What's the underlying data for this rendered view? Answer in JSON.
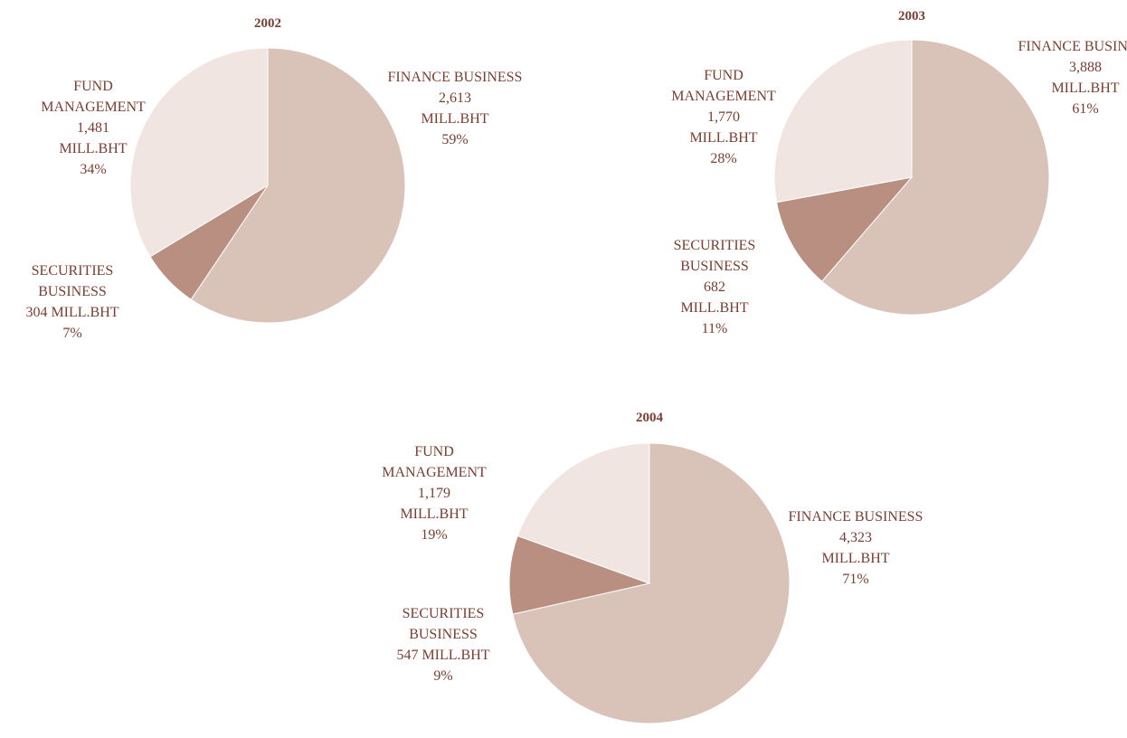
{
  "chart_data": [
    {
      "type": "pie",
      "title": "2002",
      "unit": "MILL.BHT",
      "categories": [
        "FINANCE BUSINESS",
        "SECURITIES BUSINESS",
        "FUND MANAGEMENT"
      ],
      "values": [
        2613,
        304,
        1481
      ],
      "value_labels": [
        "2,613",
        "304",
        "1,481"
      ],
      "percents": [
        59,
        7,
        34
      ],
      "percent_labels": [
        "59%",
        "7%",
        "34%"
      ],
      "colors": [
        "#d9c2b8",
        "#b98f82",
        "#f0e5e0"
      ]
    },
    {
      "type": "pie",
      "title": "2003",
      "unit": "MILL.BHT",
      "categories": [
        "FINANCE BUSINESS",
        "SECURITIES BUSINESS",
        "FUND MANAGEMENT"
      ],
      "values": [
        3888,
        682,
        1770
      ],
      "value_labels": [
        "3,888",
        "682",
        "1,770"
      ],
      "percents": [
        61,
        11,
        28
      ],
      "percent_labels": [
        "61%",
        "11%",
        "28%"
      ],
      "colors": [
        "#d9c2b8",
        "#b98f82",
        "#f0e5e0"
      ]
    },
    {
      "type": "pie",
      "title": "2004",
      "unit": "MILL.BHT",
      "categories": [
        "FINANCE BUSINESS",
        "SECURITIES BUSINESS",
        "FUND MANAGEMENT"
      ],
      "values": [
        4323,
        547,
        1179
      ],
      "value_labels": [
        "4,323",
        "547",
        "1,179"
      ],
      "percents": [
        71,
        9,
        19
      ],
      "percent_labels": [
        "71%",
        "9%",
        "19%"
      ],
      "colors": [
        "#d9c2b8",
        "#b98f82",
        "#f0e5e0"
      ]
    }
  ]
}
